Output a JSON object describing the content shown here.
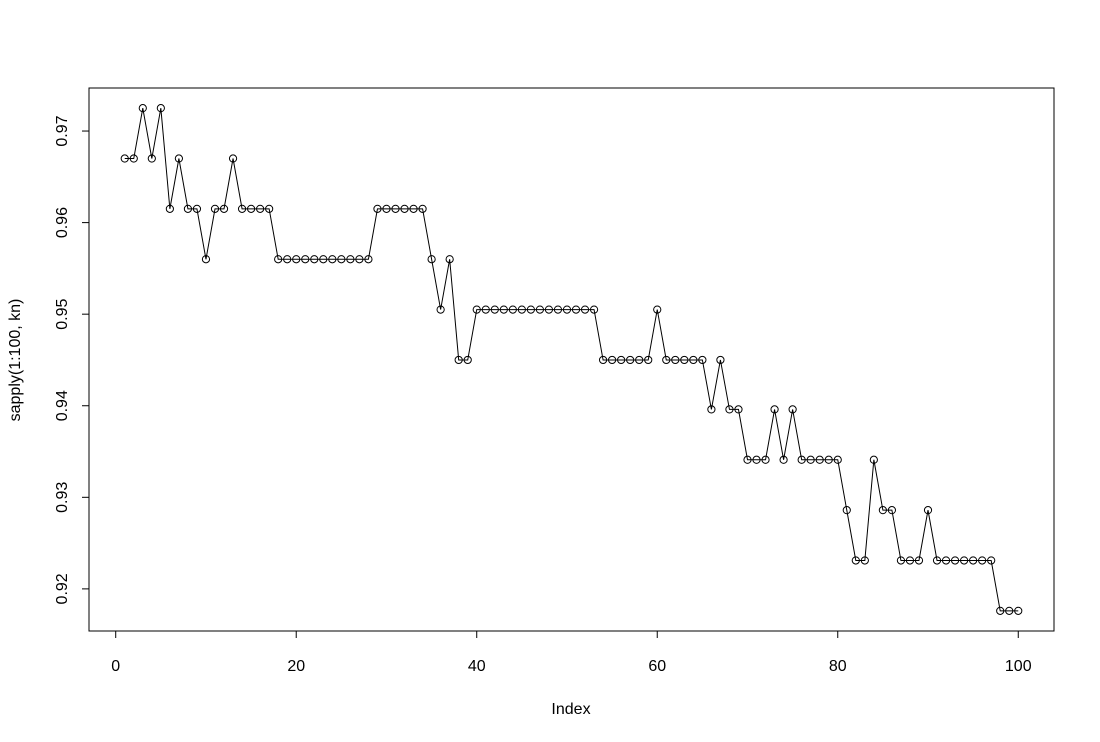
{
  "chart_data": {
    "type": "line",
    "x_label": "Index",
    "y_label": "sapply(1:100, kn)",
    "x": [
      1,
      2,
      3,
      4,
      5,
      6,
      7,
      8,
      9,
      10,
      11,
      12,
      13,
      14,
      15,
      16,
      17,
      18,
      19,
      20,
      21,
      22,
      23,
      24,
      25,
      26,
      27,
      28,
      29,
      30,
      31,
      32,
      33,
      34,
      35,
      36,
      37,
      38,
      39,
      40,
      41,
      42,
      43,
      44,
      45,
      46,
      47,
      48,
      49,
      50,
      51,
      52,
      53,
      54,
      55,
      56,
      57,
      58,
      59,
      60,
      61,
      62,
      63,
      64,
      65,
      66,
      67,
      68,
      69,
      70,
      71,
      72,
      73,
      74,
      75,
      76,
      77,
      78,
      79,
      80,
      81,
      82,
      83,
      84,
      85,
      86,
      87,
      88,
      89,
      90,
      91,
      92,
      93,
      94,
      95,
      96,
      97,
      98,
      99,
      100
    ],
    "values": [
      0.967,
      0.967,
      0.9725,
      0.967,
      0.9725,
      0.9615,
      0.967,
      0.9615,
      0.9615,
      0.956,
      0.9615,
      0.9615,
      0.967,
      0.9615,
      0.9615,
      0.9615,
      0.9615,
      0.956,
      0.956,
      0.956,
      0.956,
      0.956,
      0.956,
      0.956,
      0.956,
      0.956,
      0.956,
      0.956,
      0.9615,
      0.9615,
      0.9615,
      0.9615,
      0.9615,
      0.9615,
      0.956,
      0.9505,
      0.956,
      0.945,
      0.945,
      0.9505,
      0.9505,
      0.9505,
      0.9505,
      0.9505,
      0.9505,
      0.9505,
      0.9505,
      0.9505,
      0.9505,
      0.9505,
      0.9505,
      0.9505,
      0.9505,
      0.945,
      0.945,
      0.945,
      0.945,
      0.945,
      0.945,
      0.9505,
      0.945,
      0.945,
      0.945,
      0.945,
      0.945,
      0.9396,
      0.945,
      0.9396,
      0.9396,
      0.9341,
      0.9341,
      0.9341,
      0.9396,
      0.9341,
      0.9396,
      0.9341,
      0.9341,
      0.9341,
      0.9341,
      0.9341,
      0.9286,
      0.9231,
      0.9231,
      0.9341,
      0.9286,
      0.9286,
      0.9231,
      0.9231,
      0.9231,
      0.9286,
      0.9231,
      0.9231,
      0.9231,
      0.9231,
      0.9231,
      0.9231,
      0.9231,
      0.9176,
      0.9176,
      0.9176
    ],
    "color": "#000000",
    "marker": "open-circle",
    "xlim": [
      -2.96,
      103.96
    ],
    "ylim": [
      0.9154,
      0.9747
    ],
    "xticks": [
      0,
      20,
      40,
      60,
      80,
      100
    ],
    "yticks": [
      0.92,
      0.93,
      0.94,
      0.95,
      0.96,
      0.97
    ]
  }
}
